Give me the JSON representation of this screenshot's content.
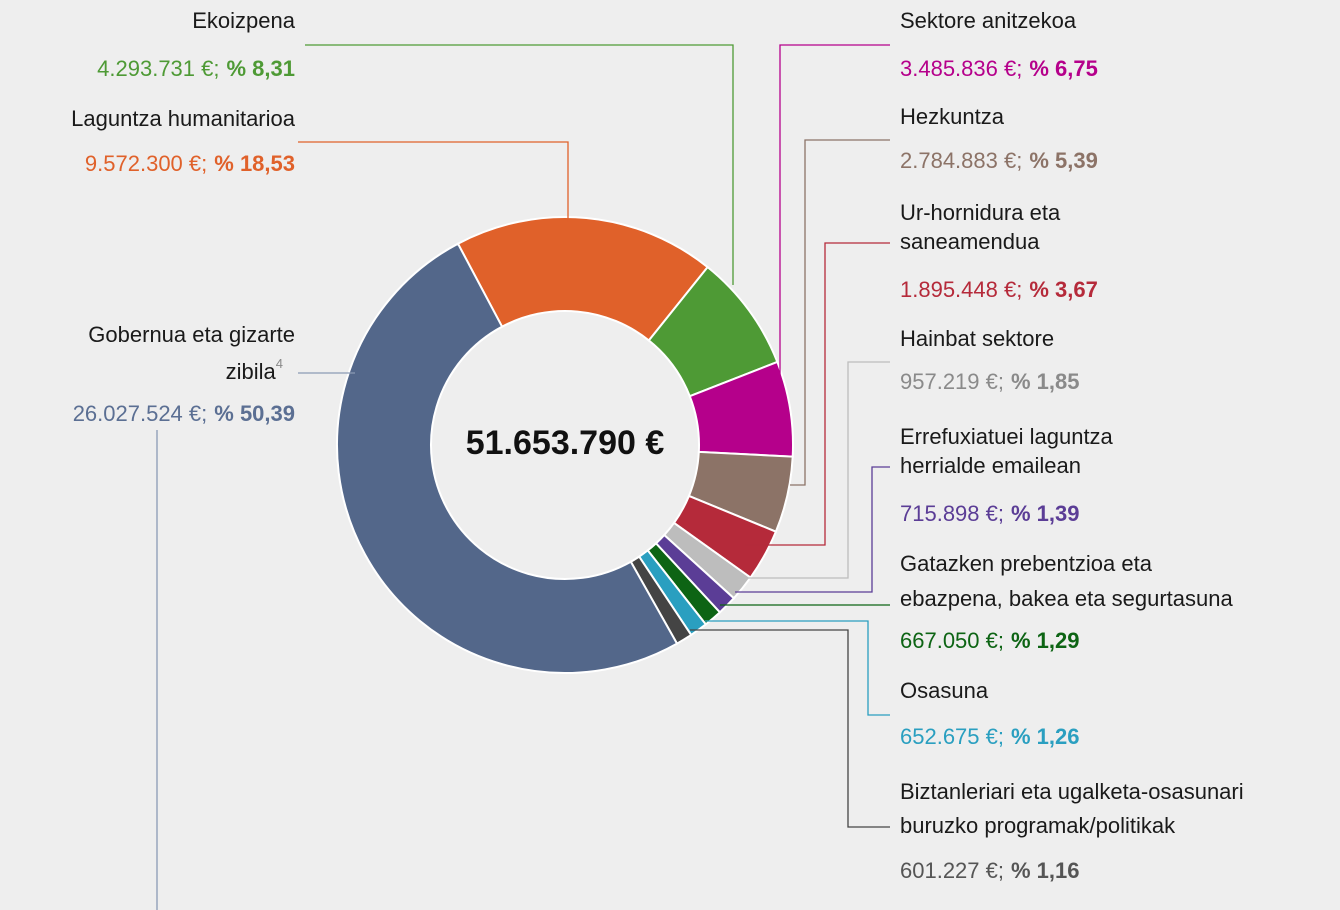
{
  "chart_data": {
    "type": "donut",
    "total_label": "51.653.790 €",
    "categories": [
      "Laguntza humanitarioa",
      "Ekoizpena",
      "Sektore anitzekoa",
      "Hezkuntza",
      "Ur-hornidura eta saneamendua",
      "Hainbat sektore",
      "Errefuxiatuei laguntza herrialde emailean",
      "Gatazken prebentzioa eta ebazpena, bakea eta segurtasuna",
      "Osasuna",
      "Biztanleriari eta ugalketa-osasunari buruzko programak/politikak",
      "Gobernua eta gizarte zibila"
    ],
    "footnote_marks": [
      null,
      null,
      null,
      null,
      null,
      null,
      null,
      null,
      null,
      null,
      "4"
    ],
    "values": [
      18.53,
      8.31,
      6.75,
      5.39,
      3.67,
      1.85,
      1.39,
      1.29,
      1.26,
      1.16,
      50.39
    ],
    "value_labels": [
      "% 18,53",
      "% 8,31",
      "% 6,75",
      "% 5,39",
      "% 3,67",
      "% 1,85",
      "% 1,39",
      "% 1,29",
      "% 1,26",
      "% 1,16",
      "% 50,39"
    ],
    "amounts": [
      9572300,
      4293731,
      3485836,
      2784883,
      1895448,
      957219,
      715898,
      667050,
      652675,
      601227,
      26027524
    ],
    "amount_labels": [
      "9.572.300 €;",
      "4.293.731 €;",
      "3.485.836 €;",
      "2.784.883 €;",
      "1.895.448 €;",
      "957.219 €;",
      "715.898 €;",
      "667.050 €;",
      "652.675 €;",
      "601.227 €;",
      "26.027.524 €;"
    ],
    "colors": [
      "#e0612a",
      "#4e9a35",
      "#b5008b",
      "#8c7367",
      "#b52a3a",
      "#bdbdbd",
      "#5b3d96",
      "#0d6414",
      "#2a9fc0",
      "#444444",
      "#53678a"
    ],
    "label_colors": [
      "#e0612a",
      "#4e9a35",
      "#b5008b",
      "#8c7367",
      "#b52a3a",
      "#8a8a8a",
      "#5b3d96",
      "#0d6414",
      "#2a9fc0",
      "#555555",
      "#5b6f93"
    ]
  }
}
